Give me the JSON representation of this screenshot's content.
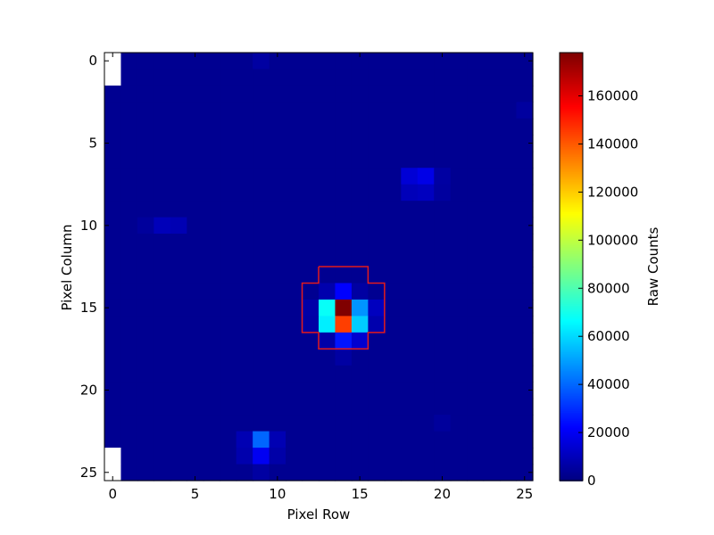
{
  "chart_data": {
    "type": "heatmap",
    "title": "",
    "xlabel": "Pixel Row",
    "ylabel": "Pixel Column",
    "colorbar_label": "Raw Counts",
    "colormap": "jet",
    "grid": false,
    "xlim": [
      0,
      25.5
    ],
    "ylim": [
      26,
      0
    ],
    "x_ticks": [
      0,
      5,
      10,
      15,
      20,
      25
    ],
    "y_ticks": [
      0,
      5,
      10,
      15,
      20,
      25
    ],
    "color_range": [
      0,
      178000
    ],
    "colorbar_ticks": [
      0,
      20000,
      40000,
      60000,
      80000,
      100000,
      120000,
      140000,
      160000
    ],
    "rows": 26,
    "cols": 26,
    "background_value": 3000,
    "cells": [
      {
        "col": 14,
        "row": 15,
        "value": 178000
      },
      {
        "col": 14,
        "row": 16,
        "value": 145000
      },
      {
        "col": 13,
        "row": 15,
        "value": 68000
      },
      {
        "col": 13,
        "row": 16,
        "value": 64000
      },
      {
        "col": 15,
        "row": 15,
        "value": 48000
      },
      {
        "col": 15,
        "row": 16,
        "value": 58000
      },
      {
        "col": 14,
        "row": 14,
        "value": 22000
      },
      {
        "col": 14,
        "row": 17,
        "value": 26000
      },
      {
        "col": 13,
        "row": 14,
        "value": 8000
      },
      {
        "col": 15,
        "row": 14,
        "value": 6000
      },
      {
        "col": 13,
        "row": 17,
        "value": 7000
      },
      {
        "col": 15,
        "row": 17,
        "value": 14000
      },
      {
        "col": 12,
        "row": 15,
        "value": 7000
      },
      {
        "col": 12,
        "row": 16,
        "value": 6500
      },
      {
        "col": 16,
        "row": 15,
        "value": 11000
      },
      {
        "col": 16,
        "row": 16,
        "value": 8000
      },
      {
        "col": 14,
        "row": 18,
        "value": 6000
      },
      {
        "col": 9,
        "row": 23,
        "value": 40000
      },
      {
        "col": 9,
        "row": 24,
        "value": 20000
      },
      {
        "col": 8,
        "row": 23,
        "value": 9000
      },
      {
        "col": 10,
        "row": 23,
        "value": 9000
      },
      {
        "col": 8,
        "row": 24,
        "value": 8000
      },
      {
        "col": 10,
        "row": 24,
        "value": 7000
      },
      {
        "col": 9,
        "row": 25,
        "value": 6000
      },
      {
        "col": 18,
        "row": 7,
        "value": 15000
      },
      {
        "col": 19,
        "row": 7,
        "value": 18000
      },
      {
        "col": 18,
        "row": 8,
        "value": 10000
      },
      {
        "col": 19,
        "row": 8,
        "value": 11000
      },
      {
        "col": 20,
        "row": 7,
        "value": 6000
      },
      {
        "col": 20,
        "row": 8,
        "value": 5500
      },
      {
        "col": 3,
        "row": 10,
        "value": 10000
      },
      {
        "col": 4,
        "row": 10,
        "value": 9000
      },
      {
        "col": 2,
        "row": 10,
        "value": 5000
      },
      {
        "col": 9,
        "row": 0,
        "value": 6000
      },
      {
        "col": 25,
        "row": 3,
        "value": 5500
      },
      {
        "col": 20,
        "row": 22,
        "value": 5000
      }
    ],
    "blank_cells": [
      {
        "col": 0,
        "row": 0
      },
      {
        "col": 0,
        "row": 1
      },
      {
        "col": 0,
        "row": 24
      },
      {
        "col": 0,
        "row": 25
      }
    ],
    "aperture": [
      [
        12.5,
        12.5
      ],
      [
        15.5,
        12.5
      ],
      [
        15.5,
        13.5
      ],
      [
        16.5,
        13.5
      ],
      [
        16.5,
        16.5
      ],
      [
        15.5,
        16.5
      ],
      [
        15.5,
        17.5
      ],
      [
        12.5,
        17.5
      ],
      [
        12.5,
        16.5
      ],
      [
        11.5,
        16.5
      ],
      [
        11.5,
        13.5
      ],
      [
        12.5,
        13.5
      ],
      [
        12.5,
        12.5
      ]
    ],
    "aperture_color": "#e31a1c"
  }
}
